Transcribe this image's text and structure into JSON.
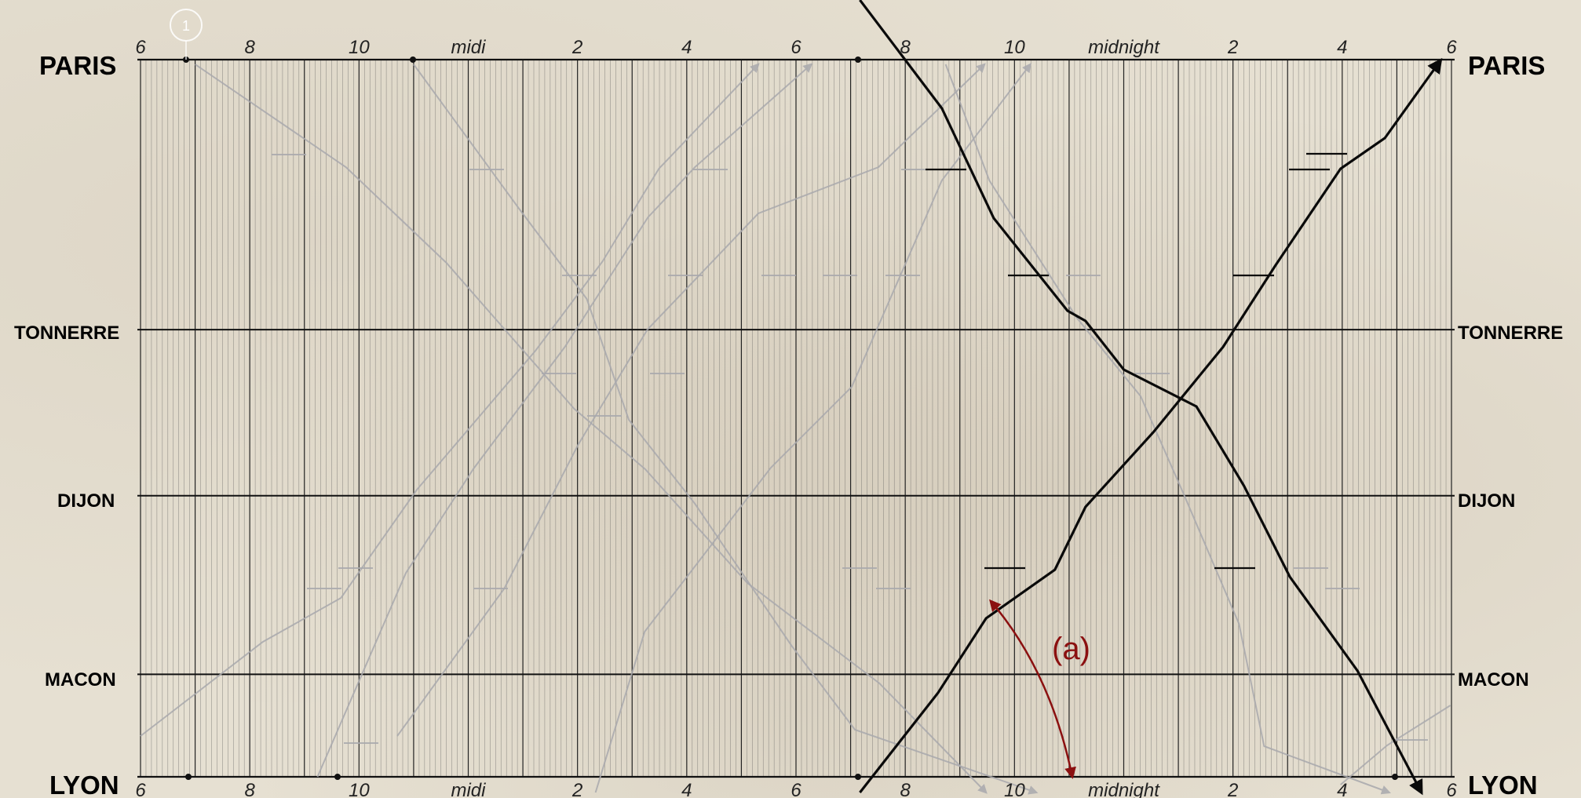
{
  "chart_data": {
    "type": "train-schedule",
    "stations": [
      {
        "name": "PARIS",
        "km": 0
      },
      {
        "name": "TONNERRE",
        "km": 195
      },
      {
        "name": "DIJON",
        "km": 315
      },
      {
        "name": "MACON",
        "km": 444
      },
      {
        "name": "LYON",
        "km": 518
      }
    ],
    "time_start": 6,
    "time_end": 30,
    "top_ticks": [
      {
        "h": 6,
        "label": "6"
      },
      {
        "h": 8,
        "label": "8"
      },
      {
        "h": 10,
        "label": "10"
      },
      {
        "h": 12,
        "label": "midi"
      },
      {
        "h": 14,
        "label": "2"
      },
      {
        "h": 16,
        "label": "4"
      },
      {
        "h": 18,
        "label": "6"
      },
      {
        "h": 20,
        "label": "8"
      },
      {
        "h": 22,
        "label": "10"
      },
      {
        "h": 24,
        "label": "midnight"
      },
      {
        "h": 26,
        "label": "2"
      },
      {
        "h": 28,
        "label": "4"
      },
      {
        "h": 30,
        "label": "6"
      }
    ],
    "bottom_ticks": [
      {
        "h": 6,
        "label": "6"
      },
      {
        "h": 8,
        "label": "8"
      },
      {
        "h": 10,
        "label": "10"
      },
      {
        "h": 12,
        "label": "midi"
      },
      {
        "h": 14,
        "label": "2"
      },
      {
        "h": 16,
        "label": "4"
      },
      {
        "h": 18,
        "label": "6"
      },
      {
        "h": 20,
        "label": "8"
      },
      {
        "h": 22,
        "label": "10"
      },
      {
        "h": 24,
        "label": "midnight"
      },
      {
        "h": 26,
        "label": "2"
      },
      {
        "h": 28,
        "label": "4"
      },
      {
        "h": 30,
        "label": "6"
      }
    ],
    "highlighted_trains": [
      {
        "name": "Paris to Lyon",
        "points": [
          [
            19.17,
            0
          ],
          [
            20.67,
            138
          ],
          [
            21.62,
            278
          ],
          [
            22.97,
            396
          ],
          [
            23.3,
            409
          ],
          [
            24.0,
            471
          ],
          [
            25.33,
            518
          ],
          [
            26.2,
            619
          ],
          [
            27.04,
            735
          ],
          [
            28.28,
            855
          ],
          [
            29.45,
            1010
          ]
        ]
      },
      {
        "name": "Lyon to Paris",
        "points": [
          [
            19.17,
            1010
          ],
          [
            20.6,
            883
          ],
          [
            21.48,
            788
          ],
          [
            22.74,
            726
          ],
          [
            23.3,
            646
          ],
          [
            24.54,
            551
          ],
          [
            25.82,
            442
          ],
          [
            26.78,
            338
          ],
          [
            27.97,
            215
          ],
          [
            28.78,
            176
          ],
          [
            29.8,
            77
          ]
        ]
      }
    ],
    "faded_trains": [
      {
        "points": [
          [
            7.0,
            82
          ],
          [
            9.76,
            213
          ],
          [
            11.6,
            335
          ],
          [
            13.94,
            521
          ],
          [
            15.24,
            598
          ],
          [
            17.11,
            743
          ],
          [
            19.53,
            871
          ],
          [
            21.48,
            1010
          ]
        ]
      },
      {
        "points": [
          [
            11.0,
            82
          ],
          [
            12.92,
            265
          ],
          [
            14.17,
            381
          ],
          [
            14.94,
            535
          ],
          [
            16.15,
            642
          ],
          [
            17.92,
            823
          ],
          [
            19.08,
            930
          ],
          [
            22.4,
            1010
          ]
        ]
      },
      {
        "points": [
          [
            20.74,
            82
          ],
          [
            21.54,
            230
          ],
          [
            23.14,
            405
          ],
          [
            24.31,
            505
          ],
          [
            25.1,
            630
          ],
          [
            26.11,
            795
          ],
          [
            26.57,
            951
          ],
          [
            28.86,
            1010
          ]
        ]
      },
      {
        "points": [
          [
            6.0,
            938
          ],
          [
            8.24,
            818
          ],
          [
            9.67,
            762
          ],
          [
            11.06,
            624
          ],
          [
            13.23,
            447
          ],
          [
            14.46,
            333
          ],
          [
            15.49,
            215
          ],
          [
            17.31,
            82
          ]
        ]
      },
      {
        "points": [
          [
            9.24,
            990
          ],
          [
            10.86,
            730
          ],
          [
            12.1,
            597
          ],
          [
            13.77,
            442
          ],
          [
            15.29,
            277
          ],
          [
            16.15,
            213
          ],
          [
            18.28,
            82
          ]
        ]
      },
      {
        "points": [
          [
            10.7,
            938
          ],
          [
            12.66,
            750
          ],
          [
            14.01,
            567
          ],
          [
            15.28,
            420
          ],
          [
            17.31,
            272
          ],
          [
            19.51,
            213
          ],
          [
            21.45,
            82
          ]
        ]
      },
      {
        "points": [
          [
            14.33,
            1010
          ],
          [
            15.23,
            805
          ],
          [
            17.54,
            596
          ],
          [
            19.02,
            493
          ],
          [
            20.67,
            230
          ],
          [
            22.29,
            82
          ]
        ]
      },
      {
        "points": [
          [
            27.97,
            1000
          ],
          [
            28.82,
            950
          ],
          [
            29.98,
            899
          ]
        ]
      }
    ],
    "annotations": [
      {
        "text": "(a)",
        "color": "#8b1010"
      },
      {
        "text": "1",
        "color": "#ffffff"
      }
    ],
    "colors": {
      "major_line": "#222222",
      "minor_line": "#555555",
      "train_highlight": "#0a0a0a",
      "train_faded": "#a9a9ad",
      "annotation": "#8b1010"
    },
    "grid": true
  }
}
